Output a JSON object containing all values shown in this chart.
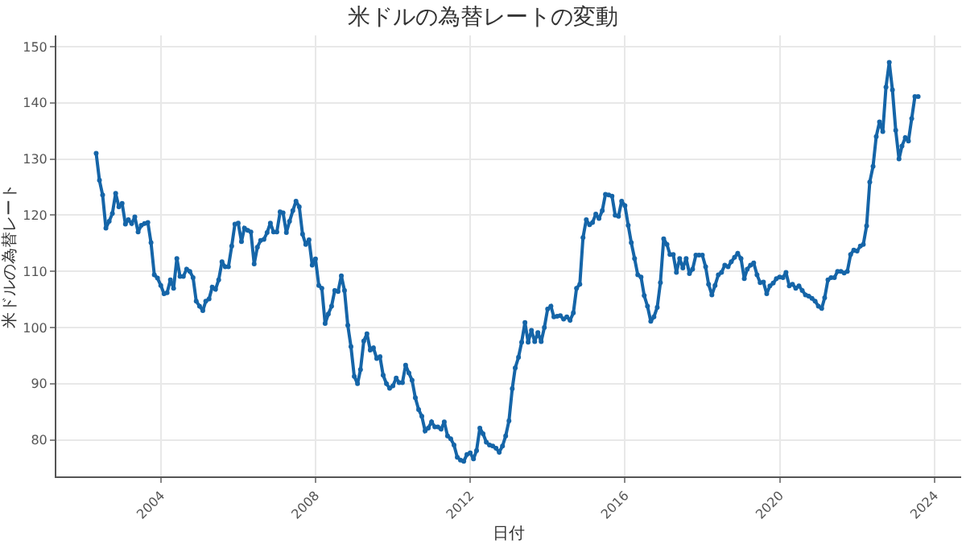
{
  "chart_data": {
    "type": "line",
    "title": "米ドルの為替レートの変動",
    "xlabel": "日付",
    "ylabel": "米ドルの為替レート",
    "x": [
      "2002-05",
      "2002-06",
      "2002-07",
      "2002-08",
      "2002-09",
      "2002-10",
      "2002-11",
      "2002-12",
      "2003-01",
      "2003-02",
      "2003-03",
      "2003-04",
      "2003-05",
      "2003-06",
      "2003-07",
      "2003-08",
      "2003-09",
      "2003-10",
      "2003-11",
      "2003-12",
      "2004-01",
      "2004-02",
      "2004-03",
      "2004-04",
      "2004-05",
      "2004-06",
      "2004-07",
      "2004-08",
      "2004-09",
      "2004-10",
      "2004-11",
      "2004-12",
      "2005-01",
      "2005-02",
      "2005-03",
      "2005-04",
      "2005-05",
      "2005-06",
      "2005-07",
      "2005-08",
      "2005-09",
      "2005-10",
      "2005-11",
      "2005-12",
      "2006-01",
      "2006-02",
      "2006-03",
      "2006-04",
      "2006-05",
      "2006-06",
      "2006-07",
      "2006-08",
      "2006-09",
      "2006-10",
      "2006-11",
      "2006-12",
      "2007-01",
      "2007-02",
      "2007-03",
      "2007-04",
      "2007-05",
      "2007-06",
      "2007-07",
      "2007-08",
      "2007-09",
      "2007-10",
      "2007-11",
      "2007-12",
      "2008-01",
      "2008-02",
      "2008-03",
      "2008-04",
      "2008-05",
      "2008-06",
      "2008-07",
      "2008-08",
      "2008-09",
      "2008-10",
      "2008-11",
      "2008-12",
      "2009-01",
      "2009-02",
      "2009-03",
      "2009-04",
      "2009-05",
      "2009-06",
      "2009-07",
      "2009-08",
      "2009-09",
      "2009-10",
      "2009-11",
      "2009-12",
      "2010-01",
      "2010-02",
      "2010-03",
      "2010-04",
      "2010-05",
      "2010-06",
      "2010-07",
      "2010-08",
      "2010-09",
      "2010-10",
      "2010-11",
      "2010-12",
      "2011-01",
      "2011-02",
      "2011-03",
      "2011-04",
      "2011-05",
      "2011-06",
      "2011-07",
      "2011-08",
      "2011-09",
      "2011-10",
      "2011-11",
      "2011-12",
      "2012-01",
      "2012-02",
      "2012-03",
      "2012-04",
      "2012-05",
      "2012-06",
      "2012-07",
      "2012-08",
      "2012-09",
      "2012-10",
      "2012-11",
      "2012-12",
      "2013-01",
      "2013-02",
      "2013-03",
      "2013-04",
      "2013-05",
      "2013-06",
      "2013-07",
      "2013-08",
      "2013-09",
      "2013-10",
      "2013-11",
      "2013-12",
      "2014-01",
      "2014-02",
      "2014-03",
      "2014-04",
      "2014-05",
      "2014-06",
      "2014-07",
      "2014-08",
      "2014-09",
      "2014-10",
      "2014-11",
      "2014-12",
      "2015-01",
      "2015-02",
      "2015-03",
      "2015-04",
      "2015-05",
      "2015-06",
      "2015-07",
      "2015-08",
      "2015-09",
      "2015-10",
      "2015-11",
      "2015-12",
      "2016-01",
      "2016-02",
      "2016-03",
      "2016-04",
      "2016-05",
      "2016-06",
      "2016-07",
      "2016-08",
      "2016-09",
      "2016-10",
      "2016-11",
      "2016-12",
      "2017-01",
      "2017-02",
      "2017-03",
      "2017-04",
      "2017-05",
      "2017-06",
      "2017-07",
      "2017-08",
      "2017-09",
      "2017-10",
      "2017-11",
      "2017-12",
      "2018-01",
      "2018-02",
      "2018-03",
      "2018-04",
      "2018-05",
      "2018-06",
      "2018-07",
      "2018-08",
      "2018-09",
      "2018-10",
      "2018-11",
      "2018-12",
      "2019-01",
      "2019-02",
      "2019-03",
      "2019-04",
      "2019-05",
      "2019-06",
      "2019-07",
      "2019-08",
      "2019-09",
      "2019-10",
      "2019-11",
      "2019-12",
      "2020-01",
      "2020-02",
      "2020-03",
      "2020-04",
      "2020-05",
      "2020-06",
      "2020-07",
      "2020-08",
      "2020-09",
      "2020-10",
      "2020-11",
      "2020-12",
      "2021-01",
      "2021-02",
      "2021-03",
      "2021-04",
      "2021-05",
      "2021-06",
      "2021-07",
      "2021-08",
      "2021-09",
      "2021-10",
      "2021-11",
      "2021-12",
      "2022-01",
      "2022-02",
      "2022-03",
      "2022-04",
      "2022-05",
      "2022-06",
      "2022-07",
      "2022-08",
      "2022-09",
      "2022-10",
      "2022-11",
      "2022-12",
      "2023-01",
      "2023-02",
      "2023-03",
      "2023-04",
      "2023-05",
      "2023-06",
      "2023-07",
      "2023-08"
    ],
    "series": [
      {
        "color": "#1565a8",
        "values": [
          131,
          126.2,
          123.6,
          117.7,
          118.9,
          120.3,
          123.9,
          121.5,
          122.1,
          118.4,
          119.2,
          118.5,
          119.7,
          117,
          118.2,
          118.5,
          118.7,
          115.1,
          109.4,
          108.8,
          107.5,
          106,
          106.2,
          108.5,
          107,
          112.3,
          109.1,
          109.1,
          110.4,
          110,
          108.9,
          104.7,
          103.8,
          103,
          104.7,
          105.1,
          107.2,
          106.8,
          108.5,
          111.7,
          110.8,
          110.8,
          114.5,
          118.4,
          118.6,
          115.3,
          117.7,
          117.3,
          117,
          111.3,
          114.3,
          115.5,
          115.7,
          116.9,
          118.6,
          117,
          117,
          120.6,
          120.4,
          116.9,
          118.9,
          120.8,
          122.5,
          121.5,
          116.6,
          114.8,
          115.6,
          111.1,
          112.2,
          107.5,
          107,
          100.7,
          102.4,
          103.8,
          106.6,
          106.4,
          109.2,
          106.6,
          100.4,
          96.6,
          91.3,
          90,
          92.5,
          97.6,
          98.9,
          96,
          96.4,
          94.5,
          94.8,
          91.5,
          90,
          89.2,
          89.6,
          91,
          90.2,
          90.2,
          93.3,
          91.9,
          90.6,
          87.5,
          85.4,
          84.2,
          81.6,
          82.1,
          83.2,
          82.3,
          82.3,
          81.9,
          83.2,
          80.7,
          80.2,
          79.1,
          76.9,
          76.4,
          76.2,
          77.4,
          77.7,
          76.6,
          78.1,
          82.1,
          81.1,
          79.6,
          79.1,
          78.9,
          78.5,
          77.8,
          78.9,
          80.7,
          83.4,
          89.1,
          92.8,
          94.7,
          97.4,
          100.9,
          97.4,
          99.5,
          97.5,
          99.1,
          97.5,
          100,
          103.3,
          103.8,
          101.9,
          102,
          102.1,
          101.5,
          101.9,
          101.3,
          102.6,
          107,
          107.7,
          116,
          119.2,
          118.3,
          118.7,
          120.2,
          119.4,
          120.8,
          123.7,
          123.6,
          123.4,
          120,
          119.8,
          122.5,
          121.7,
          118.2,
          115.1,
          112.3,
          109.4,
          109,
          105.7,
          103.8,
          101.1,
          101.9,
          103.6,
          108,
          115.8,
          114.8,
          113,
          113,
          109.8,
          112.3,
          110.6,
          112.3,
          109.6,
          110.4,
          112.9,
          112.9,
          112.9,
          110.8,
          107.7,
          105.8,
          107.5,
          109.4,
          109.8,
          111.1,
          110.8,
          111.7,
          112.5,
          113.2,
          112.3,
          108.7,
          110.4,
          111.1,
          111.5,
          109.4,
          108,
          108.1,
          106,
          107.4,
          107.9,
          108.7,
          109,
          108.9,
          109.8,
          107.4,
          107.7,
          107,
          107.4,
          106.6,
          105.8,
          105.6,
          105.2,
          104.7,
          103.8,
          103.4,
          105.3,
          108.5,
          108.9,
          108.9,
          110,
          110,
          109.7,
          110,
          113,
          113.8,
          113.6,
          114.5,
          114.8,
          118.1,
          125.9,
          128.7,
          134,
          136.6,
          134.9,
          142.8,
          147.2,
          142.3,
          135.1,
          130,
          132.3,
          133.8,
          133.2,
          137.2,
          141.1,
          141.1
        ]
      }
    ],
    "xlim": [
      "2001-04-20",
      "2024-09-10"
    ],
    "xticks": [
      "2004",
      "2008",
      "2012",
      "2016",
      "2020",
      "2024"
    ],
    "ylim": [
      73.5,
      152
    ],
    "yticks": [
      80,
      90,
      100,
      110,
      120,
      130,
      140,
      150
    ],
    "grid": true,
    "marker": "circle",
    "line_style": "solid"
  }
}
